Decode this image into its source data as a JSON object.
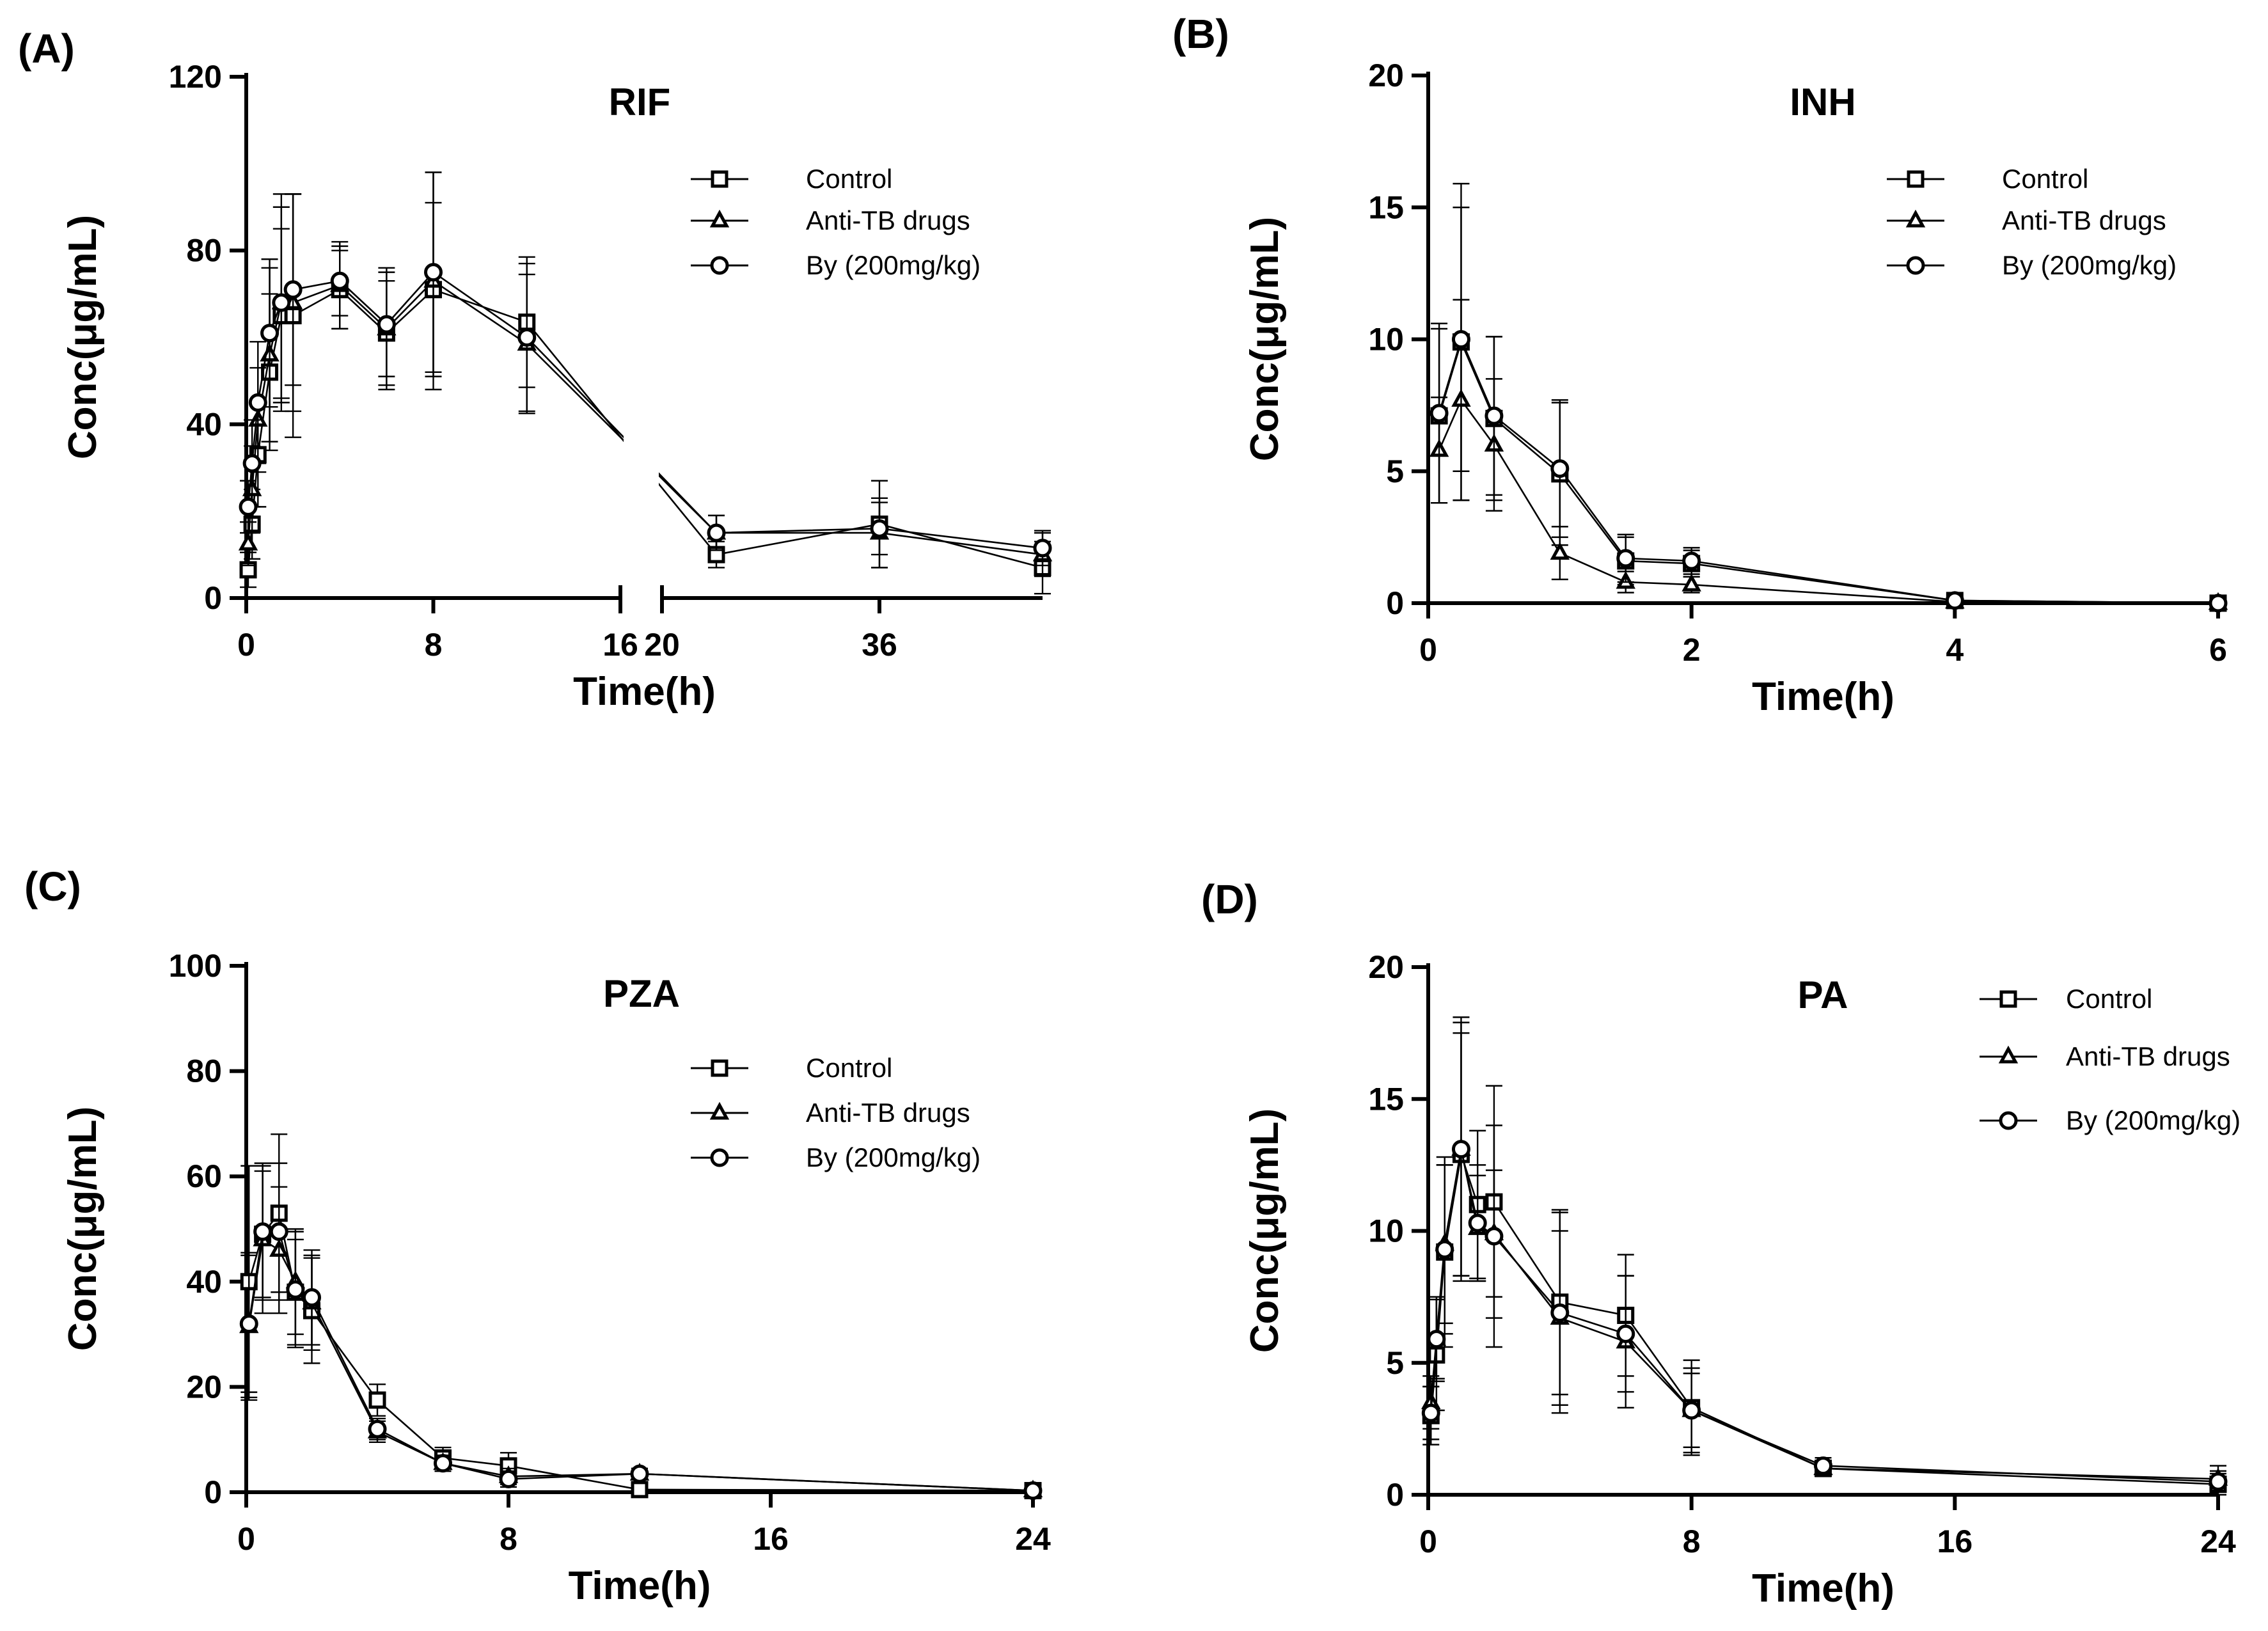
{
  "chart_data": [
    {
      "type": "line",
      "panel_label": "(A)",
      "title": "RIF",
      "xlabel": "Time(h)",
      "ylabel": "Conc(μg/mL)",
      "ylim": [
        0,
        120
      ],
      "y_ticks": [
        0,
        40,
        80,
        120
      ],
      "x_ticks": [
        0,
        8,
        16,
        20,
        36
      ],
      "x_axis_break": {
        "segment1": [
          0,
          16
        ],
        "segment2": [
          20,
          48
        ]
      },
      "legend_placement": "top-right",
      "series": [
        {
          "name": "Control",
          "marker": "square",
          "points": [
            [
              0.083,
              6.5,
              4
            ],
            [
              0.25,
              17,
              8
            ],
            [
              0.5,
              33,
              12
            ],
            [
              1,
              52,
              18
            ],
            [
              1.5,
              65,
              20
            ],
            [
              2,
              65,
              28
            ],
            [
              4,
              71,
              9
            ],
            [
              6,
              61,
              12
            ],
            [
              8,
              71,
              20
            ],
            [
              12,
              63.5,
              15
            ],
            [
              24,
              10,
              3
            ],
            [
              36,
              17,
              10
            ],
            [
              48,
              7,
              6
            ]
          ]
        },
        {
          "name": "Anti-TB drugs",
          "marker": "triangle",
          "points": [
            [
              0.083,
              12.5,
              5
            ],
            [
              0.25,
              25,
              10
            ],
            [
              0.5,
              41,
              12
            ],
            [
              1,
              56,
              20
            ],
            [
              1.5,
              68,
              25
            ],
            [
              2,
              68,
              25
            ],
            [
              4,
              72,
              10
            ],
            [
              6,
              62,
              14
            ],
            [
              8,
              73,
              25
            ],
            [
              12,
              58.5,
              16
            ],
            [
              24,
              15,
              4
            ],
            [
              36,
              15,
              8
            ],
            [
              48,
              10,
              5
            ]
          ]
        },
        {
          "name": "By (200mg/kg)",
          "marker": "circle",
          "points": [
            [
              0.083,
              21,
              6
            ],
            [
              0.25,
              31,
              10
            ],
            [
              0.5,
              45,
              14
            ],
            [
              1,
              61,
              17
            ],
            [
              1.5,
              68,
              22
            ],
            [
              2,
              71,
              22
            ],
            [
              4,
              73,
              8
            ],
            [
              6,
              63,
              12
            ],
            [
              8,
              75,
              23
            ],
            [
              12,
              60,
              17
            ],
            [
              24,
              15,
              4
            ],
            [
              36,
              16,
              6
            ],
            [
              48,
              11.5,
              4
            ]
          ]
        }
      ]
    },
    {
      "type": "line",
      "panel_label": "(B)",
      "title": "INH",
      "xlabel": "Time(h)",
      "ylabel": "Conc(μg/mL)",
      "xlim": [
        0,
        6
      ],
      "ylim": [
        0,
        20
      ],
      "x_ticks": [
        0,
        2,
        4,
        6
      ],
      "y_ticks": [
        0,
        5,
        10,
        15,
        20
      ],
      "legend_placement": "top-right",
      "series": [
        {
          "name": "Control",
          "marker": "square",
          "points": [
            [
              0.083,
              7.1,
              3.3
            ],
            [
              0.25,
              9.9,
              6
            ],
            [
              0.5,
              7,
              3.1
            ],
            [
              1,
              4.9,
              2.7
            ],
            [
              1.5,
              1.6,
              0.9
            ],
            [
              2,
              1.5,
              0.5
            ],
            [
              4,
              0.1,
              0.05
            ],
            [
              6,
              0,
              0.02
            ]
          ]
        },
        {
          "name": "Anti-TB drugs",
          "marker": "triangle",
          "points": [
            [
              0.083,
              5.8,
              2
            ],
            [
              0.25,
              7.7,
              3.8
            ],
            [
              0.5,
              6,
              2.5
            ],
            [
              1,
              1.9,
              1
            ],
            [
              1.5,
              0.8,
              0.4
            ],
            [
              2,
              0.7,
              0.3
            ],
            [
              4,
              0.05,
              0.05
            ],
            [
              6,
              0,
              0.02
            ]
          ]
        },
        {
          "name": "By (200mg/kg)",
          "marker": "circle",
          "points": [
            [
              0.083,
              7.2,
              3.4
            ],
            [
              0.25,
              10,
              5
            ],
            [
              0.5,
              7.1,
              3
            ],
            [
              1,
              5.1,
              2.6
            ],
            [
              1.5,
              1.7,
              0.9
            ],
            [
              2,
              1.6,
              0.5
            ],
            [
              4,
              0.1,
              0.05
            ],
            [
              6,
              0,
              0.02
            ]
          ]
        }
      ]
    },
    {
      "type": "line",
      "panel_label": "(C)",
      "title": "PZA",
      "xlabel": "Time(h)",
      "ylabel": "Conc(μg/mL)",
      "xlim": [
        0,
        24
      ],
      "ylim": [
        0,
        100
      ],
      "x_ticks": [
        0,
        8,
        16,
        24
      ],
      "y_ticks": [
        0,
        20,
        40,
        60,
        80,
        100
      ],
      "legend_placement": "top-right",
      "series": [
        {
          "name": "Control",
          "marker": "square",
          "points": [
            [
              0.083,
              40,
              22
            ],
            [
              0.5,
              49,
              12
            ],
            [
              1,
              53,
              15
            ],
            [
              1.5,
              38,
              10
            ],
            [
              2,
              34.5,
              10
            ],
            [
              4,
              17.5,
              3
            ],
            [
              6,
              6.5,
              2
            ],
            [
              8,
              5,
              2.5
            ],
            [
              12,
              0.5,
              0.5
            ],
            [
              24,
              0.3,
              0.3
            ]
          ]
        },
        {
          "name": "Anti-TB drugs",
          "marker": "triangle",
          "points": [
            [
              0.083,
              31.5,
              14
            ],
            [
              0.5,
              48,
              14
            ],
            [
              1,
              46,
              12
            ],
            [
              1.5,
              40,
              10
            ],
            [
              2,
              36,
              9
            ],
            [
              4,
              11.5,
              2
            ],
            [
              6,
              5.5,
              1.5
            ],
            [
              8,
              3,
              1.5
            ],
            [
              12,
              3.5,
              1
            ],
            [
              24,
              0.3,
              0.3
            ]
          ]
        },
        {
          "name": "By (200mg/kg)",
          "marker": "circle",
          "points": [
            [
              0.083,
              32,
              13
            ],
            [
              0.5,
              49.5,
              13
            ],
            [
              1,
              49.5,
              13
            ],
            [
              1.5,
              38.5,
              11
            ],
            [
              2,
              37,
              9
            ],
            [
              4,
              12,
              2
            ],
            [
              6,
              5.5,
              1.5
            ],
            [
              8,
              2.5,
              1.5
            ],
            [
              12,
              3.5,
              1
            ],
            [
              24,
              0.3,
              0.3
            ]
          ]
        }
      ]
    },
    {
      "type": "line",
      "panel_label": "(D)",
      "title": "PA",
      "xlabel": "Time(h)",
      "ylabel": "Conc(μg/mL)",
      "xlim": [
        0,
        24
      ],
      "ylim": [
        0,
        20
      ],
      "x_ticks": [
        0,
        8,
        16,
        24
      ],
      "y_ticks": [
        0,
        5,
        10,
        15,
        20
      ],
      "legend_placement": "top-right",
      "series": [
        {
          "name": "Control",
          "marker": "square",
          "points": [
            [
              0.083,
              3,
              1.1
            ],
            [
              0.25,
              5.3,
              2.1
            ],
            [
              0.5,
              9.2,
              3.6
            ],
            [
              1,
              12.9,
              4.6
            ],
            [
              1.5,
              11,
              2.8
            ],
            [
              2,
              11.1,
              4.4
            ],
            [
              4,
              7.3,
              3.5
            ],
            [
              6,
              6.8,
              2.3
            ],
            [
              8,
              3.3,
              1.8
            ],
            [
              12,
              1,
              0.3
            ],
            [
              24,
              0.4,
              0.4
            ]
          ]
        },
        {
          "name": "Anti-TB drugs",
          "marker": "triangle",
          "points": [
            [
              0.083,
              3.5,
              1
            ],
            [
              0.25,
              5.9,
              1.5
            ],
            [
              0.5,
              9.5,
              3
            ],
            [
              1,
              13.1,
              4.8
            ],
            [
              1.5,
              10.1,
              2
            ],
            [
              2,
              9.9,
              2.4
            ],
            [
              4,
              6.7,
              3.3
            ],
            [
              6,
              5.8,
              2.5
            ],
            [
              8,
              3.2,
              1.4
            ],
            [
              12,
              1,
              0.3
            ],
            [
              24,
              0.6,
              0.5
            ]
          ]
        },
        {
          "name": "By (200mg/kg)",
          "marker": "circle",
          "points": [
            [
              0.083,
              3.1,
              1
            ],
            [
              0.25,
              5.9,
              1.6
            ],
            [
              0.5,
              9.3,
              3.2
            ],
            [
              1,
              13.1,
              5
            ],
            [
              1.5,
              10.3,
              2.2
            ],
            [
              2,
              9.8,
              4.2
            ],
            [
              4,
              6.9,
              3.8
            ],
            [
              6,
              6.1,
              2.2
            ],
            [
              8,
              3.2,
              1.6
            ],
            [
              12,
              1.1,
              0.3
            ],
            [
              24,
              0.5,
              0.4
            ]
          ]
        }
      ]
    }
  ]
}
